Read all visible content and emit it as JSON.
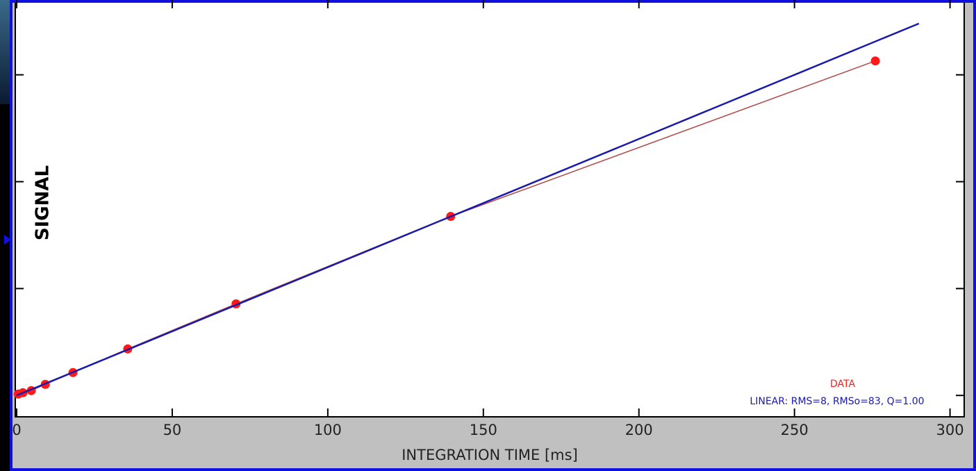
{
  "chart_data": {
    "type": "scatter",
    "x_label": "INTEGRATION TIME [ms]",
    "y_label": "SIGNAL",
    "xlim": [
      0,
      305
    ],
    "xticks": [
      0,
      50,
      100,
      150,
      200,
      250,
      300
    ],
    "ylim": [
      -0.2,
      3.7
    ],
    "yticks": [
      0,
      1,
      2,
      3
    ],
    "series": [
      {
        "name": "DATA",
        "color": "#ff1a1a",
        "line_color": "#b04848",
        "x": [
          0.5,
          2.0,
          4.7,
          9.2,
          18.1,
          35.7,
          70.5,
          139.5,
          276.0
        ],
        "values": [
          0.013,
          0.026,
          0.045,
          0.104,
          0.214,
          0.435,
          0.857,
          1.675,
          3.13
        ]
      },
      {
        "name": "LINEAR: RMS=8, RMSo=83, Q=1.00",
        "color": "#1a1aaa",
        "x": [
          0,
          290
        ],
        "values": [
          0.0,
          3.48
        ]
      }
    ]
  }
}
